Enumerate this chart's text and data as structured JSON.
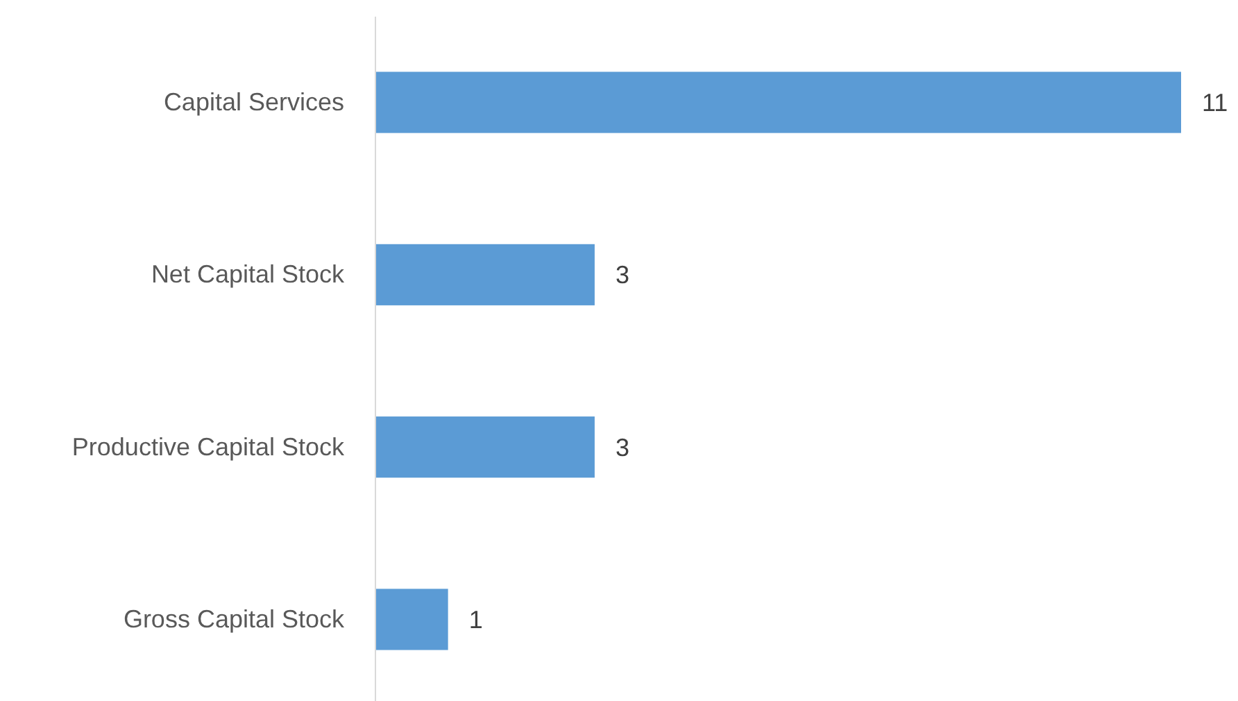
{
  "chart_data": {
    "type": "bar",
    "orientation": "horizontal",
    "categories": [
      "Capital Services",
      "Net Capital Stock",
      "Productive Capital Stock",
      "Gross Capital Stock"
    ],
    "values": [
      11,
      3,
      3,
      1
    ],
    "color": "#5b9bd5",
    "xlim": [
      0,
      11
    ],
    "data_labels": true,
    "tick_labels": "y"
  }
}
